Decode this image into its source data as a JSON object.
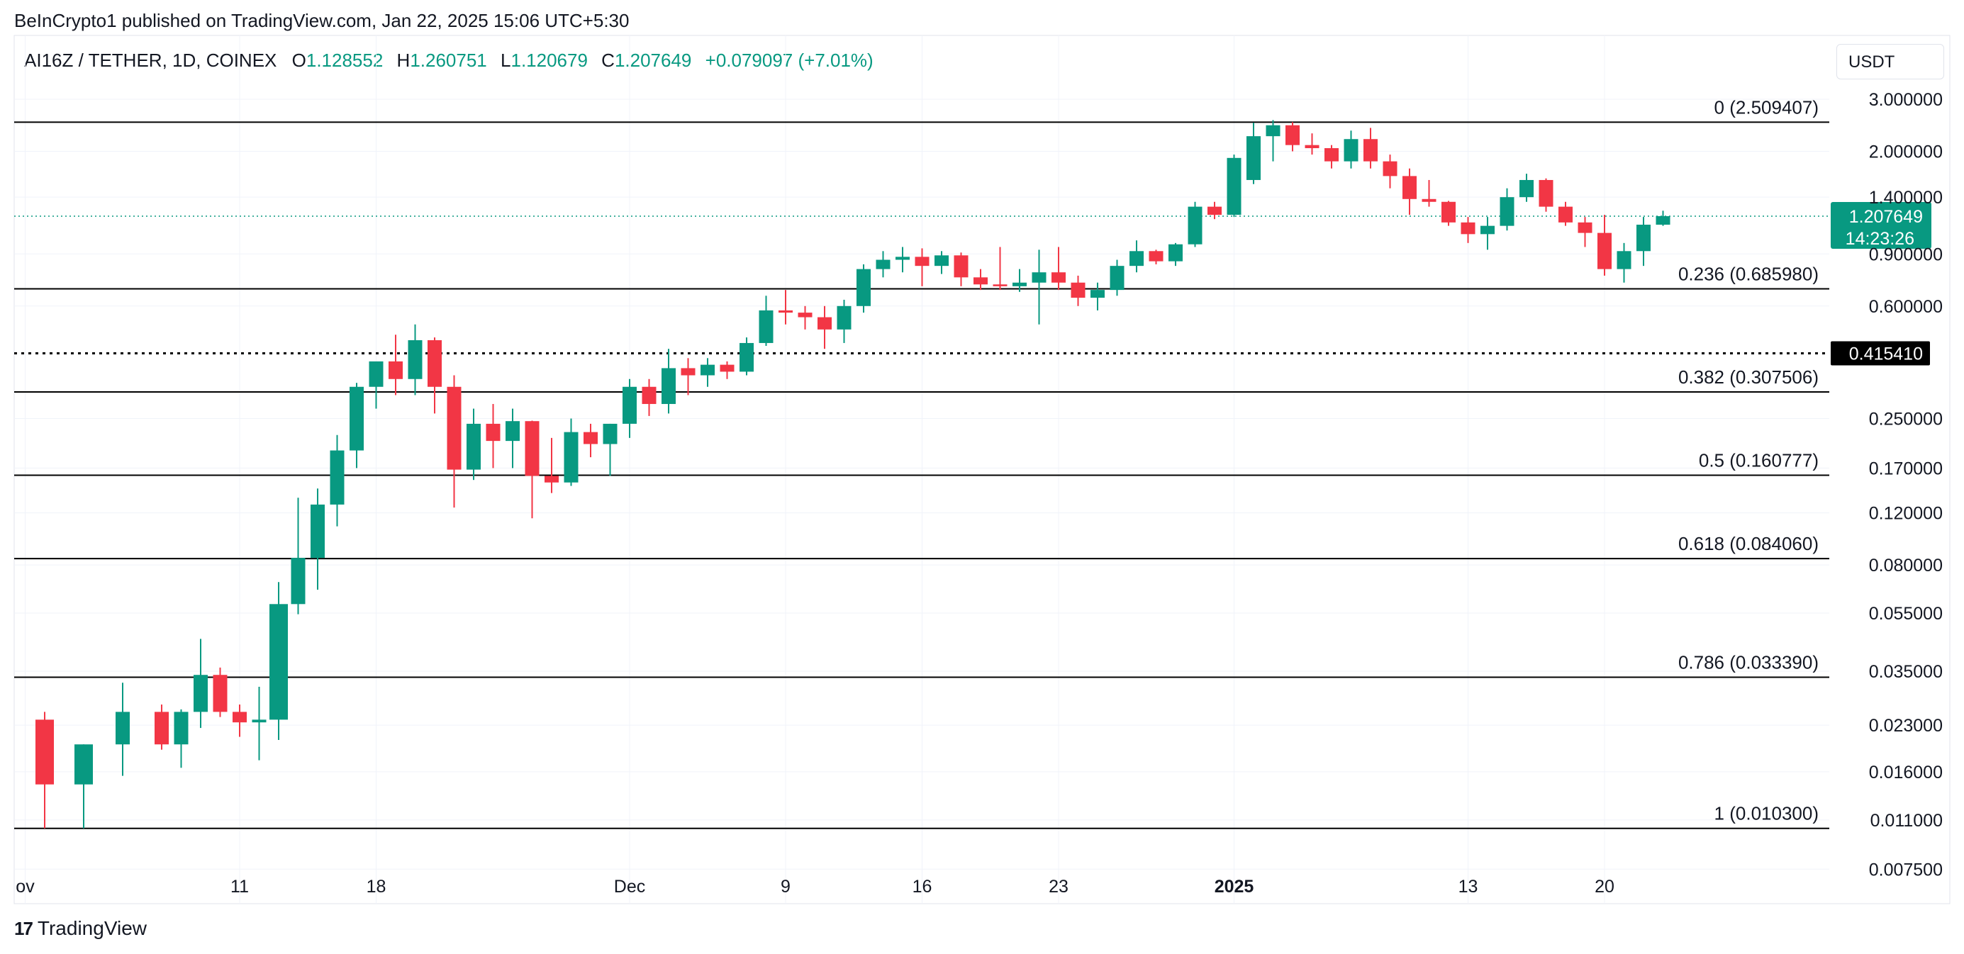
{
  "header": {
    "published_text": "BeInCrypto1 published on TradingView.com, Jan 22, 2025 15:06 UTC+5:30"
  },
  "legend": {
    "symbol": "AI16Z / TETHER, 1D, COINEX",
    "o_label": "O",
    "o_value": "1.128552",
    "h_label": "H",
    "h_value": "1.260751",
    "l_label": "L",
    "l_value": "1.120679",
    "c_label": "C",
    "c_value": "1.207649",
    "change": "+0.079097 (+7.01%)"
  },
  "currency_button": "USDT",
  "footer": {
    "brand": "TradingView",
    "logo_glyph": "17"
  },
  "colors": {
    "up": "#089981",
    "down": "#f23645",
    "grid": "#f0f3fa",
    "text": "#131722"
  },
  "chart_data": {
    "type": "candlestick",
    "y_scale": "log",
    "ylim": [
      0.0055,
      4.5
    ],
    "y_ticks": [
      "3.000000",
      "2.000000",
      "1.400000",
      "0.900000",
      "0.600000",
      "0.250000",
      "0.170000",
      "0.120000",
      "0.080000",
      "0.055000",
      "0.035000",
      "0.023000",
      "0.016000",
      "0.011000",
      "0.007500"
    ],
    "x_ticks": [
      {
        "label": "ov",
        "day": -1,
        "bold": false
      },
      {
        "label": "11",
        "day": 10,
        "bold": false
      },
      {
        "label": "18",
        "day": 17,
        "bold": false
      },
      {
        "label": "Dec",
        "day": 30,
        "bold": false
      },
      {
        "label": "9",
        "day": 38,
        "bold": false
      },
      {
        "label": "16",
        "day": 45,
        "bold": false
      },
      {
        "label": "23",
        "day": 52,
        "bold": false
      },
      {
        "label": "2025",
        "day": 61,
        "bold": true
      },
      {
        "label": "13",
        "day": 73,
        "bold": false
      },
      {
        "label": "20",
        "day": 80,
        "bold": false
      }
    ],
    "fib_levels": [
      {
        "label": "0 (2.509407)",
        "value": 2.509407
      },
      {
        "label": "0.236 (0.685980)",
        "value": 0.68598
      },
      {
        "label": "0.382 (0.307506)",
        "value": 0.307506
      },
      {
        "label": "0.5 (0.160777)",
        "value": 0.160777
      },
      {
        "label": "0.618 (0.084060)",
        "value": 0.08406
      },
      {
        "label": "0.786 (0.033390)",
        "value": 0.03339
      },
      {
        "label": "1 (0.010300)",
        "value": 0.0103
      }
    ],
    "support_line": {
      "label": "0.415410",
      "value": 0.41541
    },
    "last_price": {
      "value": 1.207649,
      "label": "1.207649",
      "countdown": "14:23:26"
    },
    "candles": [
      {
        "day": 0,
        "o": 0.024,
        "h": 0.0255,
        "l": 0.0103,
        "c": 0.0145
      },
      {
        "day": 2,
        "o": 0.0145,
        "h": 0.0198,
        "l": 0.0103,
        "c": 0.0198
      },
      {
        "day": 4,
        "o": 0.0198,
        "h": 0.032,
        "l": 0.0155,
        "c": 0.0255
      },
      {
        "day": 6,
        "o": 0.0255,
        "h": 0.027,
        "l": 0.019,
        "c": 0.0198
      },
      {
        "day": 7,
        "o": 0.0198,
        "h": 0.026,
        "l": 0.0165,
        "c": 0.0255
      },
      {
        "day": 8,
        "o": 0.0255,
        "h": 0.045,
        "l": 0.0225,
        "c": 0.034
      },
      {
        "day": 9,
        "o": 0.034,
        "h": 0.036,
        "l": 0.0245,
        "c": 0.0255
      },
      {
        "day": 10,
        "o": 0.0255,
        "h": 0.027,
        "l": 0.021,
        "c": 0.0235
      },
      {
        "day": 11,
        "o": 0.0235,
        "h": 0.031,
        "l": 0.0175,
        "c": 0.024
      },
      {
        "day": 12,
        "o": 0.024,
        "h": 0.07,
        "l": 0.0205,
        "c": 0.059
      },
      {
        "day": 13,
        "o": 0.059,
        "h": 0.135,
        "l": 0.0545,
        "c": 0.0845
      },
      {
        "day": 14,
        "o": 0.0845,
        "h": 0.145,
        "l": 0.066,
        "c": 0.128
      },
      {
        "day": 15,
        "o": 0.128,
        "h": 0.22,
        "l": 0.108,
        "c": 0.195
      },
      {
        "day": 16,
        "o": 0.195,
        "h": 0.33,
        "l": 0.17,
        "c": 0.32
      },
      {
        "day": 17,
        "o": 0.32,
        "h": 0.38,
        "l": 0.27,
        "c": 0.39
      },
      {
        "day": 18,
        "o": 0.39,
        "h": 0.48,
        "l": 0.3,
        "c": 0.34
      },
      {
        "day": 19,
        "o": 0.34,
        "h": 0.52,
        "l": 0.3,
        "c": 0.46
      },
      {
        "day": 20,
        "o": 0.46,
        "h": 0.47,
        "l": 0.26,
        "c": 0.32
      },
      {
        "day": 21,
        "o": 0.32,
        "h": 0.35,
        "l": 0.125,
        "c": 0.168
      },
      {
        "day": 22,
        "o": 0.168,
        "h": 0.27,
        "l": 0.155,
        "c": 0.24
      },
      {
        "day": 23,
        "o": 0.24,
        "h": 0.28,
        "l": 0.17,
        "c": 0.21
      },
      {
        "day": 24,
        "o": 0.21,
        "h": 0.27,
        "l": 0.17,
        "c": 0.245
      },
      {
        "day": 25,
        "o": 0.245,
        "h": 0.246,
        "l": 0.115,
        "c": 0.16
      },
      {
        "day": 26,
        "o": 0.16,
        "h": 0.215,
        "l": 0.14,
        "c": 0.152
      },
      {
        "day": 27,
        "o": 0.152,
        "h": 0.25,
        "l": 0.148,
        "c": 0.225
      },
      {
        "day": 28,
        "o": 0.225,
        "h": 0.24,
        "l": 0.185,
        "c": 0.205
      },
      {
        "day": 29,
        "o": 0.205,
        "h": 0.24,
        "l": 0.16,
        "c": 0.24
      },
      {
        "day": 30,
        "o": 0.24,
        "h": 0.34,
        "l": 0.215,
        "c": 0.32
      },
      {
        "day": 31,
        "o": 0.32,
        "h": 0.34,
        "l": 0.255,
        "c": 0.28
      },
      {
        "day": 32,
        "o": 0.28,
        "h": 0.43,
        "l": 0.26,
        "c": 0.37
      },
      {
        "day": 33,
        "o": 0.37,
        "h": 0.4,
        "l": 0.3,
        "c": 0.35
      },
      {
        "day": 34,
        "o": 0.35,
        "h": 0.4,
        "l": 0.32,
        "c": 0.38
      },
      {
        "day": 35,
        "o": 0.38,
        "h": 0.39,
        "l": 0.34,
        "c": 0.36
      },
      {
        "day": 36,
        "o": 0.36,
        "h": 0.47,
        "l": 0.35,
        "c": 0.45
      },
      {
        "day": 37,
        "o": 0.45,
        "h": 0.65,
        "l": 0.44,
        "c": 0.58
      },
      {
        "day": 38,
        "o": 0.58,
        "h": 0.68,
        "l": 0.52,
        "c": 0.57
      },
      {
        "day": 39,
        "o": 0.57,
        "h": 0.6,
        "l": 0.5,
        "c": 0.55
      },
      {
        "day": 40,
        "o": 0.55,
        "h": 0.6,
        "l": 0.43,
        "c": 0.5
      },
      {
        "day": 41,
        "o": 0.5,
        "h": 0.63,
        "l": 0.45,
        "c": 0.6
      },
      {
        "day": 42,
        "o": 0.6,
        "h": 0.83,
        "l": 0.57,
        "c": 0.8
      },
      {
        "day": 43,
        "o": 0.8,
        "h": 0.92,
        "l": 0.75,
        "c": 0.86
      },
      {
        "day": 44,
        "o": 0.86,
        "h": 0.95,
        "l": 0.78,
        "c": 0.88
      },
      {
        "day": 45,
        "o": 0.88,
        "h": 0.94,
        "l": 0.7,
        "c": 0.82
      },
      {
        "day": 46,
        "o": 0.82,
        "h": 0.92,
        "l": 0.77,
        "c": 0.89
      },
      {
        "day": 47,
        "o": 0.89,
        "h": 0.91,
        "l": 0.7,
        "c": 0.75
      },
      {
        "day": 48,
        "o": 0.75,
        "h": 0.8,
        "l": 0.68,
        "c": 0.71
      },
      {
        "day": 49,
        "o": 0.71,
        "h": 0.95,
        "l": 0.68,
        "c": 0.7
      },
      {
        "day": 50,
        "o": 0.7,
        "h": 0.8,
        "l": 0.67,
        "c": 0.72
      },
      {
        "day": 51,
        "o": 0.72,
        "h": 0.93,
        "l": 0.52,
        "c": 0.78
      },
      {
        "day": 52,
        "o": 0.78,
        "h": 0.95,
        "l": 0.68,
        "c": 0.72
      },
      {
        "day": 53,
        "o": 0.72,
        "h": 0.76,
        "l": 0.6,
        "c": 0.64
      },
      {
        "day": 54,
        "o": 0.64,
        "h": 0.72,
        "l": 0.58,
        "c": 0.68
      },
      {
        "day": 55,
        "o": 0.68,
        "h": 0.86,
        "l": 0.65,
        "c": 0.82
      },
      {
        "day": 56,
        "o": 0.82,
        "h": 1.0,
        "l": 0.78,
        "c": 0.92
      },
      {
        "day": 57,
        "o": 0.92,
        "h": 0.93,
        "l": 0.83,
        "c": 0.85
      },
      {
        "day": 58,
        "o": 0.85,
        "h": 0.98,
        "l": 0.82,
        "c": 0.97
      },
      {
        "day": 59,
        "o": 0.97,
        "h": 1.35,
        "l": 0.95,
        "c": 1.3
      },
      {
        "day": 60,
        "o": 1.3,
        "h": 1.35,
        "l": 1.18,
        "c": 1.22
      },
      {
        "day": 61,
        "o": 1.22,
        "h": 1.95,
        "l": 1.2,
        "c": 1.9
      },
      {
        "day": 62,
        "o": 1.6,
        "h": 2.5,
        "l": 1.55,
        "c": 2.25
      },
      {
        "day": 63,
        "o": 2.25,
        "h": 2.55,
        "l": 1.85,
        "c": 2.45
      },
      {
        "day": 64,
        "o": 2.45,
        "h": 2.51,
        "l": 2.0,
        "c": 2.1
      },
      {
        "day": 65,
        "o": 2.1,
        "h": 2.3,
        "l": 1.95,
        "c": 2.05
      },
      {
        "day": 66,
        "o": 2.05,
        "h": 2.1,
        "l": 1.75,
        "c": 1.85
      },
      {
        "day": 67,
        "o": 1.85,
        "h": 2.35,
        "l": 1.75,
        "c": 2.2
      },
      {
        "day": 68,
        "o": 2.2,
        "h": 2.4,
        "l": 1.75,
        "c": 1.85
      },
      {
        "day": 69,
        "o": 1.85,
        "h": 1.95,
        "l": 1.5,
        "c": 1.65
      },
      {
        "day": 70,
        "o": 1.65,
        "h": 1.75,
        "l": 1.22,
        "c": 1.38
      },
      {
        "day": 71,
        "o": 1.38,
        "h": 1.6,
        "l": 1.3,
        "c": 1.35
      },
      {
        "day": 72,
        "o": 1.35,
        "h": 1.36,
        "l": 1.12,
        "c": 1.15
      },
      {
        "day": 73,
        "o": 1.15,
        "h": 1.2,
        "l": 0.98,
        "c": 1.05
      },
      {
        "day": 74,
        "o": 1.05,
        "h": 1.2,
        "l": 0.93,
        "c": 1.12
      },
      {
        "day": 75,
        "o": 1.12,
        "h": 1.5,
        "l": 1.08,
        "c": 1.4
      },
      {
        "day": 76,
        "o": 1.4,
        "h": 1.68,
        "l": 1.35,
        "c": 1.6
      },
      {
        "day": 77,
        "o": 1.6,
        "h": 1.62,
        "l": 1.25,
        "c": 1.3
      },
      {
        "day": 78,
        "o": 1.3,
        "h": 1.35,
        "l": 1.12,
        "c": 1.15
      },
      {
        "day": 79,
        "o": 1.15,
        "h": 1.2,
        "l": 0.95,
        "c": 1.06
      },
      {
        "day": 80,
        "o": 1.06,
        "h": 1.22,
        "l": 0.76,
        "c": 0.8
      },
      {
        "day": 81,
        "o": 0.8,
        "h": 0.98,
        "l": 0.72,
        "c": 0.92
      },
      {
        "day": 82,
        "o": 0.92,
        "h": 1.2,
        "l": 0.82,
        "c": 1.13
      },
      {
        "day": 83,
        "o": 1.13,
        "h": 1.26,
        "l": 1.12,
        "c": 1.2076
      }
    ]
  }
}
